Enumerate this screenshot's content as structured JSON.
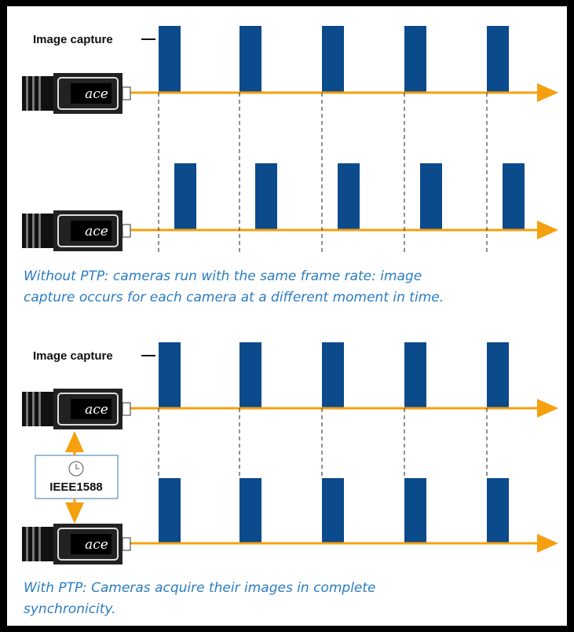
{
  "panels": [
    {
      "label": "Image capture",
      "caption_lines": [
        "Without PTP: cameras run with the same frame rate: image",
        "capture occurs for each camera at a different moment in time."
      ]
    },
    {
      "label": "Image capture",
      "clock_label": "IEEE1588",
      "caption_lines": [
        "With PTP: Cameras acquire their images in complete",
        "synchronicity."
      ]
    }
  ],
  "camera_logo": "ace"
}
